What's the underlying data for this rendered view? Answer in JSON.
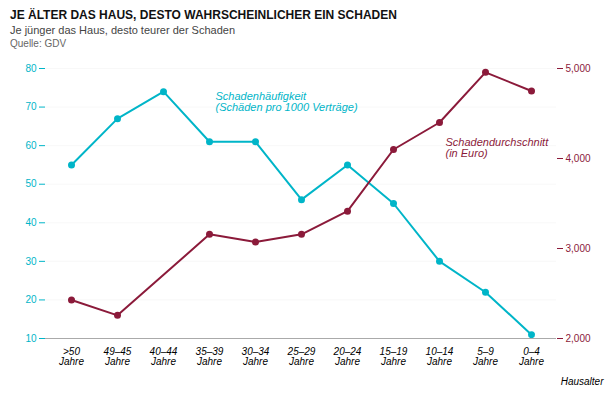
{
  "chart_data": {
    "type": "line",
    "title": "JE ÄLTER DAS HAUS, DESTO WAHRSCHEINLICHER EIN SCHADEN",
    "subtitle": "Je jünger das Haus, desto teurer der Schaden",
    "source": "Quelle: GDV",
    "xlabel": "Hausalter",
    "categories": [
      ">50\nJahre",
      "49–45\nJahre",
      "40–44\nJahre",
      "35–39\nJahre",
      "30–34\nJahre",
      "25–29\nJahre",
      "20–24\nJahre",
      "15–19\nJahre",
      "10–14\nJahre",
      "5–9\nJahre",
      "0–4\nJahre"
    ],
    "series": [
      {
        "name": "Schadenhäufigkeit\n(Schäden pro 1000 Verträge)",
        "color": "#00B5C8",
        "values": [
          55,
          67,
          74,
          61,
          61,
          46,
          55,
          45,
          30,
          22,
          11
        ]
      },
      {
        "name": "Schadendurchschnitt\n(in Euro)",
        "color": "#8B1A3A",
        "axis": "y2",
        "values": [
          2428.5714285714284,
          2257.142857142857,
          null,
          3157.142857142857,
          3071.4285714285716,
          3157.142857142857,
          3414.285714285714,
          4100,
          4400,
          4957.142857142857,
          4750
        ]
      }
    ],
    "ylim": [
      10,
      80
    ],
    "yticks": [
      10,
      20,
      30,
      40,
      50,
      60,
      70,
      80
    ],
    "y2lim": [
      2000,
      5000
    ],
    "y2ticks": [
      2000,
      3000,
      4000,
      5000
    ],
    "grid": true,
    "marker": "circle"
  }
}
